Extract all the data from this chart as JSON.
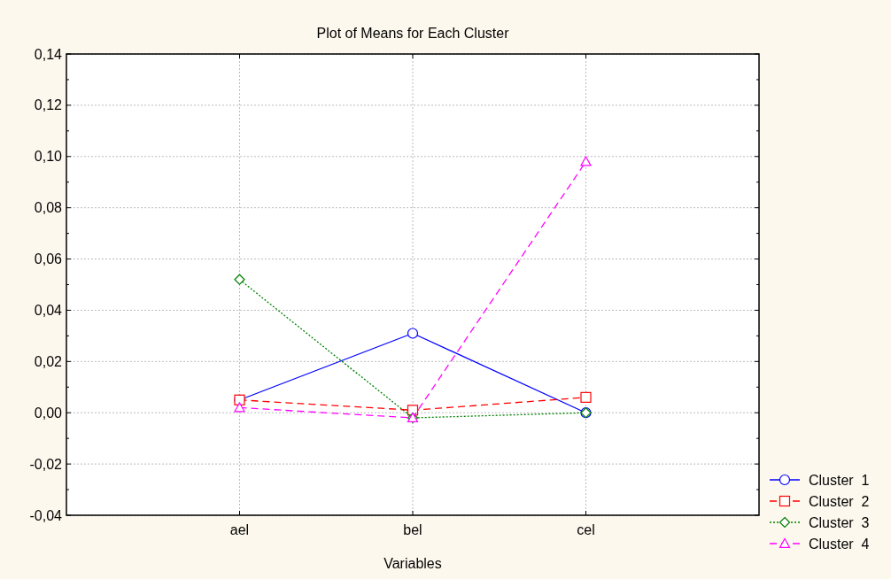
{
  "chart_data": {
    "type": "line",
    "title": "Plot of Means for Each Cluster",
    "xlabel": "Variables",
    "categories": [
      "ael",
      "bel",
      "cel"
    ],
    "series": [
      {
        "name": "Cluster  1",
        "color": "#0000ff",
        "values": [
          0.005,
          0.031,
          0.0
        ],
        "marker": "circle",
        "line_style": "solid"
      },
      {
        "name": "Cluster  2",
        "color": "#ff0000",
        "values": [
          0.005,
          0.001,
          0.006
        ],
        "marker": "square",
        "line_style": "dashed"
      },
      {
        "name": "Cluster  3",
        "color": "#008000",
        "values": [
          0.052,
          -0.002,
          0.0
        ],
        "marker": "diamond",
        "line_style": "dotted"
      },
      {
        "name": "Cluster  4",
        "color": "#ff00ff",
        "values": [
          0.002,
          -0.002,
          0.098
        ],
        "marker": "triangle",
        "line_style": "dashed"
      }
    ],
    "ylim": [
      -0.04,
      0.14
    ],
    "yticks": [
      {
        "value": -0.04,
        "label": "-0,04"
      },
      {
        "value": -0.03,
        "label": null
      },
      {
        "value": -0.02,
        "label": "-0,02"
      },
      {
        "value": -0.01,
        "label": null
      },
      {
        "value": 0,
        "label": "0,00"
      },
      {
        "value": 0.01,
        "label": null
      },
      {
        "value": 0.02,
        "label": "0,02"
      },
      {
        "value": 0.03,
        "label": null
      },
      {
        "value": 0.04,
        "label": "0,04"
      },
      {
        "value": 0.05,
        "label": null
      },
      {
        "value": 0.06,
        "label": "0,06"
      },
      {
        "value": 0.07,
        "label": null
      },
      {
        "value": 0.08,
        "label": "0,08"
      },
      {
        "value": 0.09,
        "label": null
      },
      {
        "value": 0.1,
        "label": "0,10"
      },
      {
        "value": 0.11,
        "label": null
      },
      {
        "value": 0.12,
        "label": "0,12"
      },
      {
        "value": 0.13,
        "label": null
      },
      {
        "value": 0.14,
        "label": "0,14"
      }
    ],
    "grid": true,
    "legend": "bottom right"
  }
}
